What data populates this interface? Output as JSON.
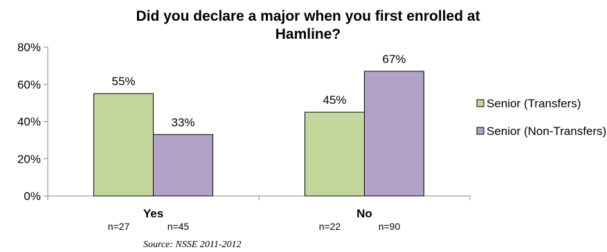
{
  "chart_data": {
    "type": "bar",
    "title": "Did you declare a major when you first enrolled at Hamline?",
    "categories": [
      "Yes",
      "No"
    ],
    "category_notes": [
      [
        "n=27",
        "n=45"
      ],
      [
        "n=22",
        "n=90"
      ]
    ],
    "series": [
      {
        "name": "Senior (Transfers)",
        "values": [
          55,
          45
        ],
        "labels": [
          "55%",
          "45%"
        ],
        "color": "#c3d69b"
      },
      {
        "name": "Senior (Non-Transfers)",
        "values": [
          33,
          67
        ],
        "labels": [
          "33%",
          "67%"
        ],
        "color": "#b3a2c7"
      }
    ],
    "ylim": [
      0,
      80
    ],
    "yticks": [
      0,
      20,
      40,
      60,
      80
    ],
    "ytick_labels": [
      "0%",
      "20%",
      "40%",
      "60%",
      "80%"
    ],
    "grid": false,
    "legend_position": "right",
    "source": "Source: NSSE 2011-2012"
  }
}
